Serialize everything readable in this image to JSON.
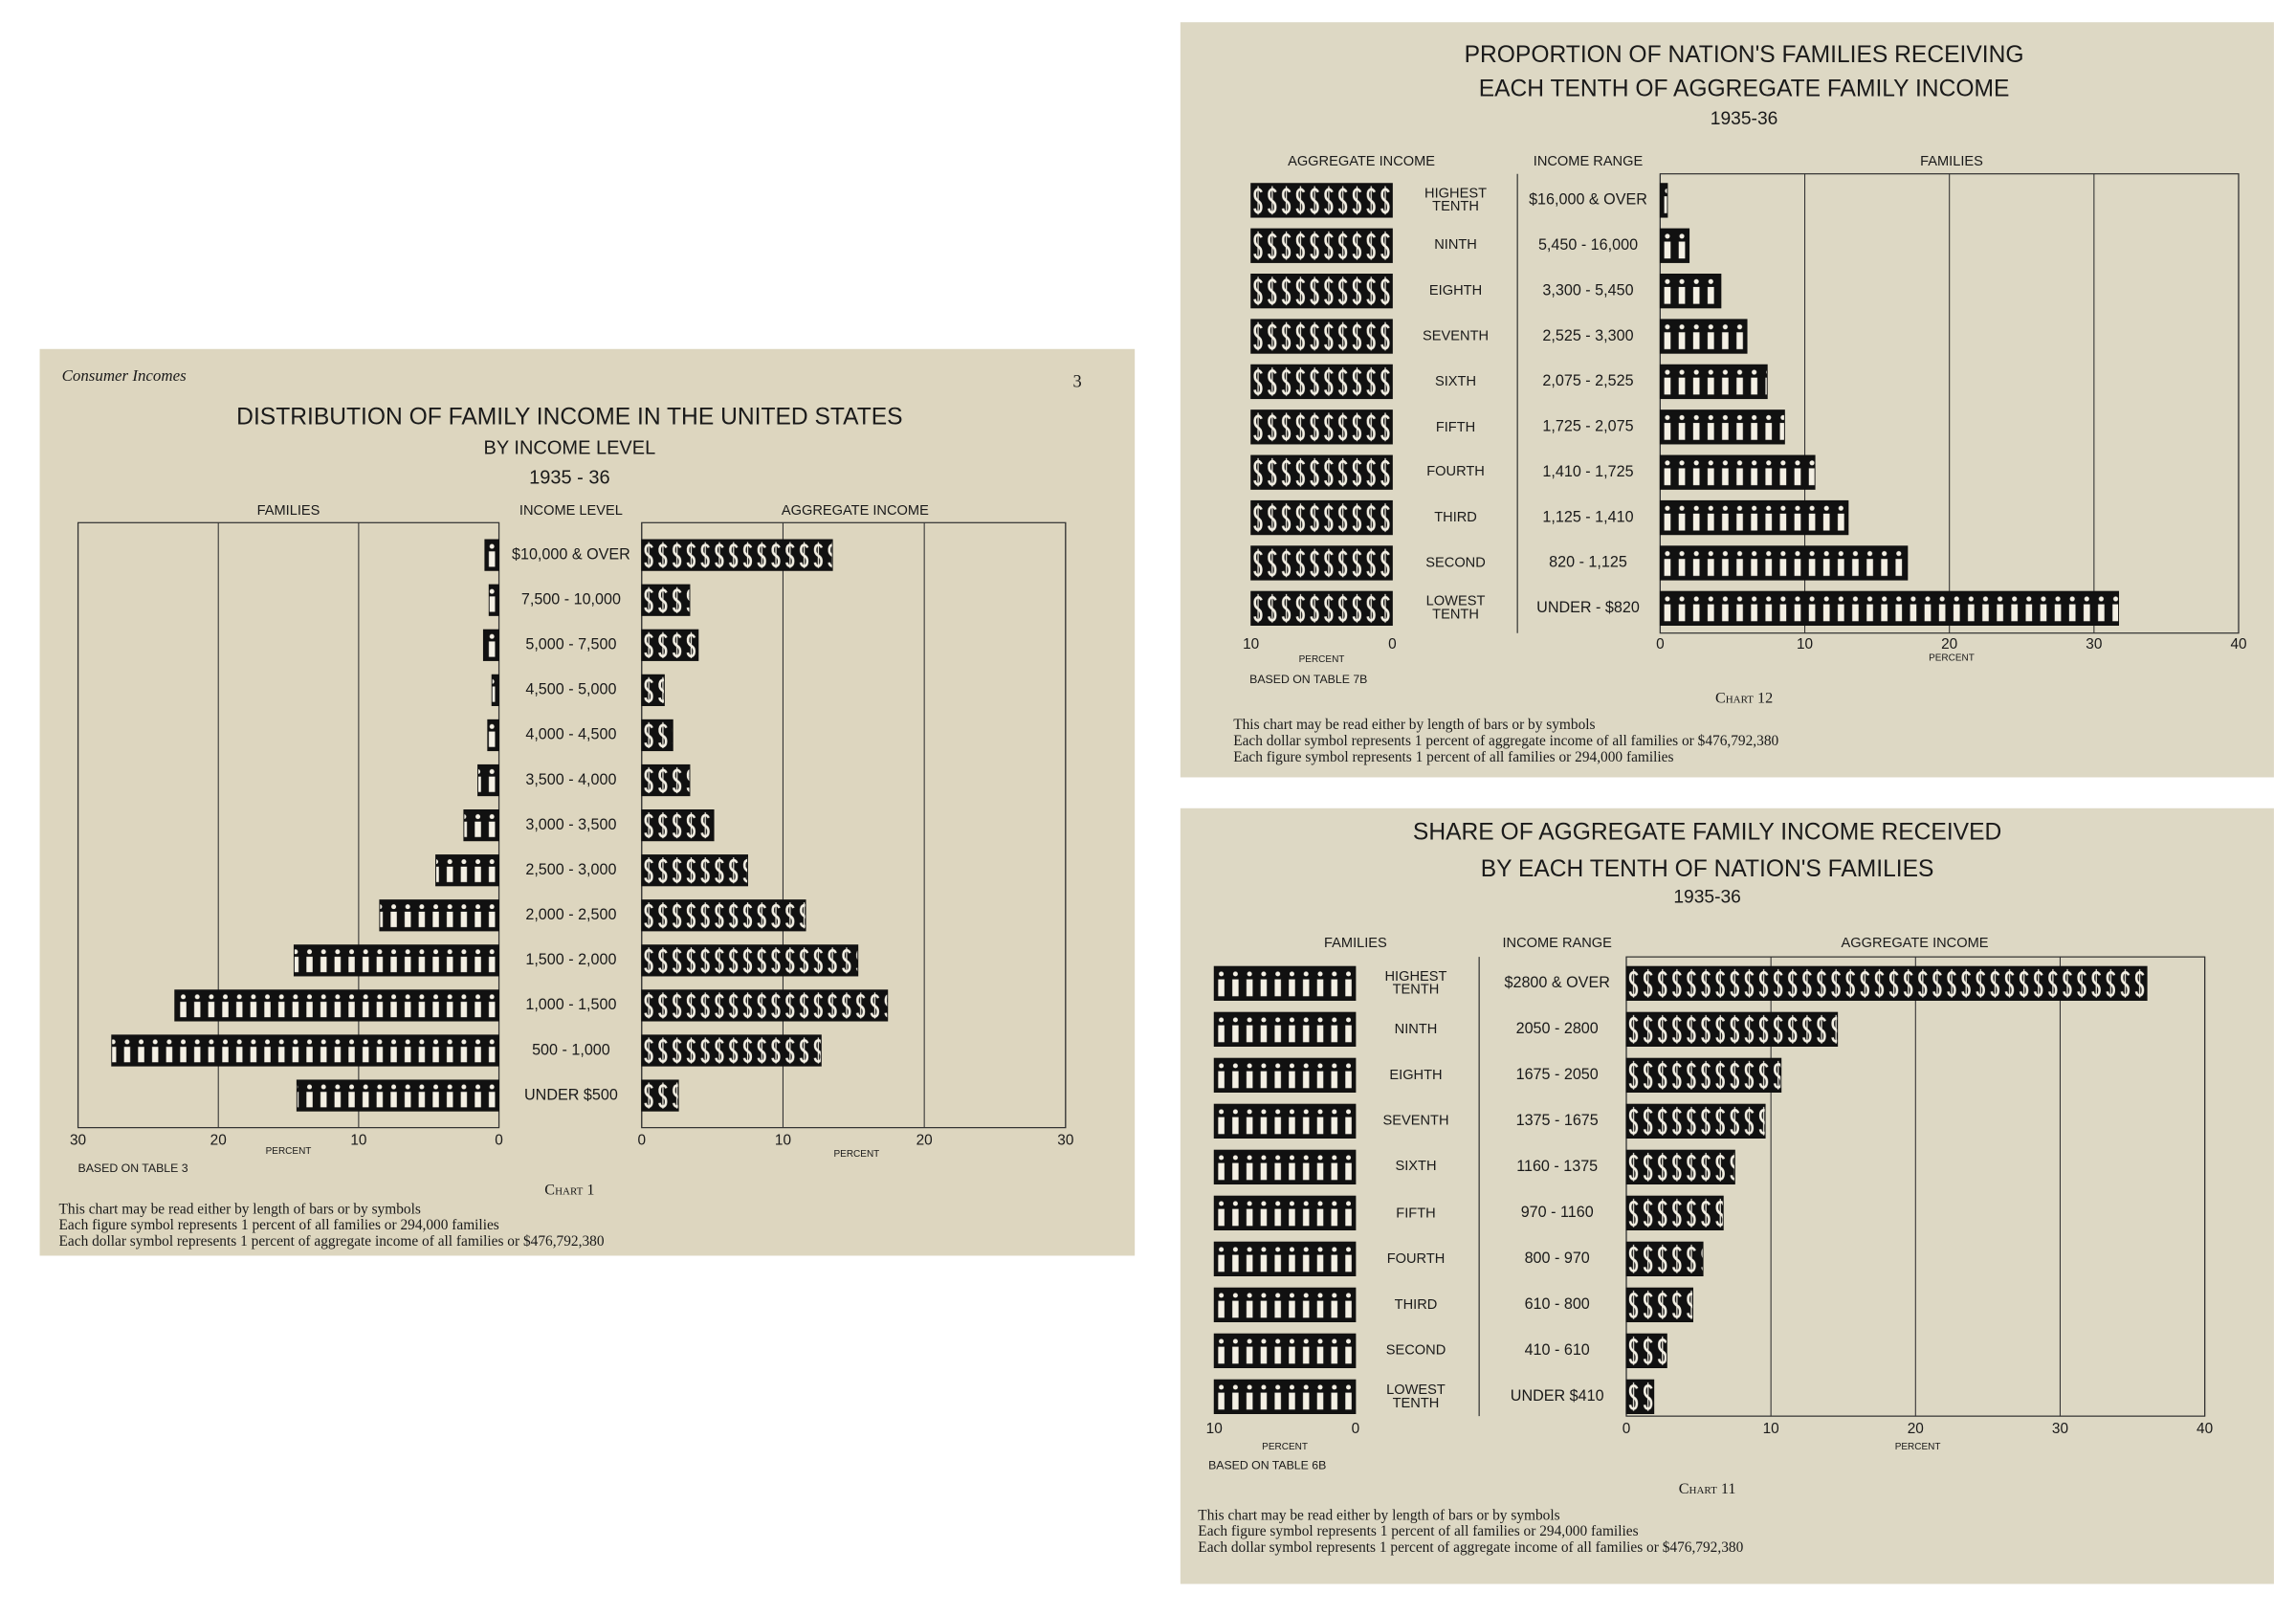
{
  "chart_data": [
    {
      "type": "butterfly",
      "header": "Consumer Incomes",
      "page": "3",
      "title": [
        "DISTRIBUTION OF FAMILY INCOME IN THE UNITED STATES",
        "BY INCOME LEVEL",
        "1935 - 36"
      ],
      "category_label": "INCOME LEVEL",
      "categories": [
        "$10,000 & OVER",
        "7,500 - 10,000",
        "5,000 - 7,500",
        "4,500 - 5,000",
        "4,000 - 4,500",
        "3,500 - 4,000",
        "3,000 - 3,500",
        "2,500 - 3,000",
        "2,000 - 2,500",
        "1,500 - 2,000",
        "1,000 - 1,500",
        "500 - 1,000",
        "UNDER $500"
      ],
      "series": [
        {
          "name": "FAMILIES",
          "color": "#111111",
          "symbol": "figure",
          "values": [
            1.0,
            0.7,
            1.1,
            0.5,
            0.8,
            1.5,
            2.5,
            4.5,
            8.5,
            14.6,
            23.1,
            27.6,
            14.4
          ],
          "xlim": [
            0,
            30
          ],
          "xticks": [
            30,
            20,
            10,
            0
          ]
        },
        {
          "name": "AGGREGATE INCOME",
          "color": "#111111",
          "symbol": "dollar",
          "values": [
            13.5,
            3.4,
            4.0,
            1.6,
            2.2,
            3.4,
            5.1,
            7.5,
            11.6,
            15.3,
            17.4,
            12.7,
            2.6
          ],
          "xlim": [
            0,
            30
          ],
          "xticks": [
            0,
            10,
            20,
            30
          ]
        }
      ],
      "grid": true,
      "axis_label": "PERCENT",
      "source": "BASED ON TABLE 3",
      "caption": "Chart 1",
      "notes": [
        "This chart may be read either by length of bars or by symbols",
        "Each figure symbol represents 1 percent of all families or 294,000 families",
        "Each dollar symbol represents 1 percent of aggregate income of all families or $476,792,380"
      ]
    },
    {
      "type": "butterfly",
      "title": [
        "PROPORTION OF NATION'S FAMILIES RECEIVING",
        "EACH TENTH OF AGGREGATE FAMILY INCOME",
        "1935-36"
      ],
      "categories": [
        "HIGHEST TENTH",
        "NINTH",
        "EIGHTH",
        "SEVENTH",
        "SIXTH",
        "FIFTH",
        "FOURTH",
        "THIRD",
        "SECOND",
        "LOWEST TENTH"
      ],
      "range_label": "INCOME RANGE",
      "ranges": [
        "$16,000 & OVER",
        "5,450 - 16,000",
        "3,300 - 5,450",
        "2,525 - 3,300",
        "2,075 - 2,525",
        "1,725 - 2,075",
        "1,410 - 1,725",
        "1,125 - 1,410",
        "820 - 1,125",
        "UNDER - $820"
      ],
      "series": [
        {
          "name": "AGGREGATE INCOME",
          "color": "#111111",
          "symbol": "dollar",
          "values": [
            10,
            10,
            10,
            10,
            10,
            10,
            10,
            10,
            10,
            10
          ],
          "xlim": [
            0,
            10
          ],
          "xticks": [
            10,
            0
          ]
        },
        {
          "name": "FAMILIES",
          "color": "#111111",
          "symbol": "figure",
          "values": [
            0.5,
            2.0,
            4.2,
            6.0,
            7.4,
            8.6,
            10.7,
            13.0,
            17.1,
            31.7
          ],
          "xlim": [
            0,
            40
          ],
          "xticks": [
            0,
            10,
            20,
            30,
            40
          ]
        }
      ],
      "grid": true,
      "axis_label": "PERCENT",
      "source": "BASED ON TABLE 7B",
      "caption": "Chart 12",
      "notes": [
        "This chart may be read either by length of bars or by symbols",
        "Each dollar symbol represents 1 percent of aggregate income of all families or $476,792,380",
        "Each figure symbol represents 1 percent of all families or 294,000 families"
      ]
    },
    {
      "type": "butterfly",
      "title": [
        "SHARE OF AGGREGATE FAMILY INCOME RECEIVED",
        "BY EACH TENTH OF NATION'S FAMILIES",
        "1935-36"
      ],
      "categories": [
        "HIGHEST TENTH",
        "NINTH",
        "EIGHTH",
        "SEVENTH",
        "SIXTH",
        "FIFTH",
        "FOURTH",
        "THIRD",
        "SECOND",
        "LOWEST TENTH"
      ],
      "range_label": "INCOME RANGE",
      "ranges": [
        "$2800 & OVER",
        "2050 - 2800",
        "1675 - 2050",
        "1375 - 1675",
        "1160 - 1375",
        "970 - 1160",
        "800 - 970",
        "610 - 800",
        "410 - 610",
        "UNDER $410"
      ],
      "series": [
        {
          "name": "FAMILIES",
          "color": "#111111",
          "symbol": "figure",
          "values": [
            10,
            10,
            10,
            10,
            10,
            10,
            10,
            10,
            10,
            10
          ],
          "xlim": [
            0,
            10
          ],
          "xticks": [
            10,
            0
          ]
        },
        {
          "name": "AGGREGATE INCOME",
          "color": "#111111",
          "symbol": "dollar",
          "values": [
            36.0,
            14.6,
            10.7,
            9.6,
            7.5,
            6.7,
            5.3,
            4.6,
            2.8,
            1.9
          ],
          "xlim": [
            0,
            40
          ],
          "xticks": [
            0,
            10,
            20,
            30,
            40
          ]
        }
      ],
      "grid": true,
      "axis_label": "PERCENT",
      "source": "BASED ON TABLE 6B",
      "caption": "Chart 11",
      "notes": [
        "This chart may be read either by length of bars or by symbols",
        "Each figure symbol represents 1 percent of all families or 294,000 families",
        "Each dollar symbol represents 1 percent of aggregate income of all families or $476,792,380"
      ]
    }
  ]
}
